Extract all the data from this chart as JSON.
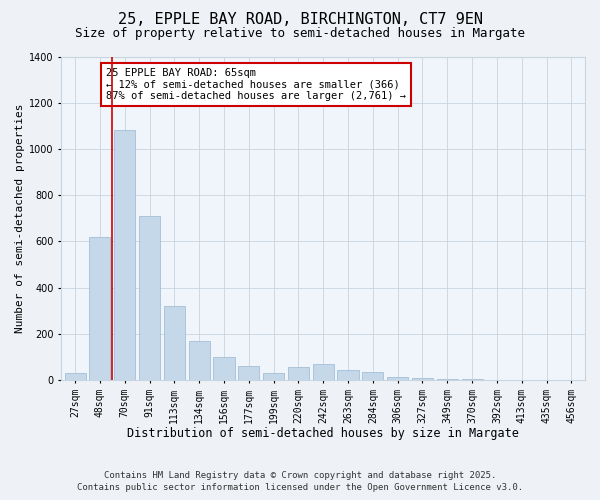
{
  "title1": "25, EPPLE BAY ROAD, BIRCHINGTON, CT7 9EN",
  "title2": "Size of property relative to semi-detached houses in Margate",
  "xlabel": "Distribution of semi-detached houses by size in Margate",
  "ylabel": "Number of semi-detached properties",
  "categories": [
    "27sqm",
    "48sqm",
    "70sqm",
    "91sqm",
    "113sqm",
    "134sqm",
    "156sqm",
    "177sqm",
    "199sqm",
    "220sqm",
    "242sqm",
    "263sqm",
    "284sqm",
    "306sqm",
    "327sqm",
    "349sqm",
    "370sqm",
    "392sqm",
    "413sqm",
    "435sqm",
    "456sqm"
  ],
  "values": [
    30,
    620,
    1080,
    710,
    320,
    170,
    100,
    60,
    30,
    55,
    70,
    45,
    35,
    12,
    8,
    5,
    3,
    0,
    0,
    0,
    0
  ],
  "bar_color": "#c5d8ea",
  "bar_edge_color": "#9ab8d0",
  "ref_line_x": 1.5,
  "ref_line_color": "#cc0000",
  "ylim": [
    0,
    1400
  ],
  "yticks": [
    0,
    200,
    400,
    600,
    800,
    1000,
    1200,
    1400
  ],
  "annotation_title": "25 EPPLE BAY ROAD: 65sqm",
  "annotation_line1": "← 12% of semi-detached houses are smaller (366)",
  "annotation_line2": "87% of semi-detached houses are larger (2,761) →",
  "footer1": "Contains HM Land Registry data © Crown copyright and database right 2025.",
  "footer2": "Contains public sector information licensed under the Open Government Licence v3.0.",
  "bg_color": "#eef2f7",
  "plot_bg_color": "#f0f5fb",
  "grid_color": "#c8d4e0",
  "title1_fontsize": 11,
  "title2_fontsize": 9,
  "xlabel_fontsize": 8.5,
  "ylabel_fontsize": 8,
  "tick_fontsize": 7,
  "annotation_fontsize": 7.5,
  "footer_fontsize": 6.5
}
